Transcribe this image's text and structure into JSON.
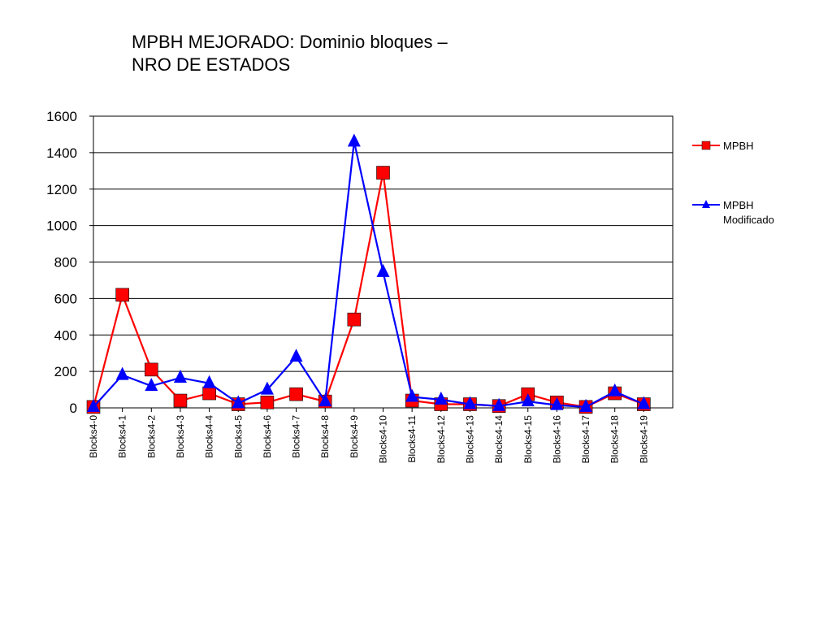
{
  "chart_data": {
    "type": "line",
    "title_line1": "MPBH MEJORADO: Dominio bloques –",
    "title_line2": "NRO DE ESTADOS",
    "xlabel": "",
    "ylabel": "",
    "ylim": [
      0,
      1600
    ],
    "yticks": [
      0,
      200,
      400,
      600,
      800,
      1000,
      1200,
      1400,
      1600
    ],
    "grid": "horizontal",
    "legend_position": "right",
    "categories": [
      "Blocks4-0",
      "Blocks4-1",
      "Blocks4-2",
      "Blocks4-3",
      "Blocks4-4",
      "Blocks4-5",
      "Blocks4-6",
      "Blocks4-7",
      "Blocks4-8",
      "Blocks4-9",
      "Blocks4-10",
      "Blocks4-11",
      "Blocks4-12",
      "Blocks4-13",
      "Blocks4-14",
      "Blocks4-15",
      "Blocks4-16",
      "Blocks4-17",
      "Blocks4-18",
      "Blocks4-19"
    ],
    "series": [
      {
        "name": "MPBH",
        "color": "#ff0000",
        "marker": "square",
        "values": [
          5,
          620,
          210,
          40,
          80,
          20,
          30,
          75,
          35,
          485,
          1290,
          40,
          20,
          20,
          10,
          75,
          30,
          5,
          80,
          20
        ]
      },
      {
        "name": "MPBH",
        "name_line2": "Modificado",
        "color": "#0000ff",
        "marker": "triangle",
        "values": [
          5,
          180,
          120,
          165,
          135,
          25,
          100,
          280,
          35,
          1460,
          745,
          60,
          45,
          20,
          10,
          35,
          15,
          5,
          90,
          20
        ]
      }
    ]
  }
}
